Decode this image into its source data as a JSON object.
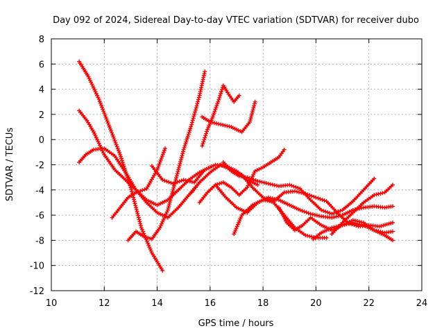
{
  "chart_data": {
    "type": "scatter",
    "title": "Day 092 of 2024, Sidereal Day-to-day VTEC variation (SDTVAR) for receiver dubo",
    "xlabel": "GPS time / hours",
    "ylabel": "SDTVAR / TECUs",
    "xlim": [
      10,
      24
    ],
    "ylim": [
      -12,
      8
    ],
    "xticks": [
      10,
      12,
      14,
      16,
      18,
      20,
      22,
      24
    ],
    "yticks": [
      -12,
      -10,
      -8,
      -6,
      -4,
      -2,
      0,
      2,
      4,
      6,
      8
    ],
    "grid": true,
    "marker": "+",
    "color": "#ff0000",
    "series": [
      {
        "name": "trace-1",
        "x": [
          11.05,
          11.4,
          11.8,
          12.2,
          12.6,
          13.0,
          13.4,
          13.8,
          14.2
        ],
        "y": [
          6.2,
          5.0,
          3.2,
          1.0,
          -1.2,
          -3.8,
          -7.0,
          -9.0,
          -10.4
        ]
      },
      {
        "name": "trace-2",
        "x": [
          11.05,
          11.2,
          11.35,
          11.6,
          12.0,
          12.4,
          12.8,
          13.2,
          13.6,
          14.0,
          14.4,
          14.8,
          15.2,
          15.6,
          16.0
        ],
        "y": [
          2.3,
          1.9,
          1.5,
          0.6,
          -1.2,
          -2.4,
          -3.2,
          -4.0,
          -4.8,
          -5.2,
          -4.8,
          -4.0,
          -3.2,
          -2.6,
          -2.2
        ]
      },
      {
        "name": "trace-3",
        "x": [
          11.05,
          11.3,
          11.6,
          12.0,
          12.4,
          12.8,
          13.2,
          13.6,
          14.0,
          14.4,
          14.8,
          15.2,
          15.6
        ],
        "y": [
          -1.8,
          -1.2,
          -0.8,
          -0.7,
          -1.3,
          -2.6,
          -4.0,
          -5.0,
          -5.8,
          -6.2,
          -5.4,
          -4.4,
          -3.4
        ]
      },
      {
        "name": "trace-4",
        "x": [
          12.3,
          12.6,
          12.9,
          13.2,
          13.6,
          14.0,
          14.3
        ],
        "y": [
          -6.2,
          -5.4,
          -4.6,
          -4.2,
          -3.9,
          -2.4,
          -0.7
        ]
      },
      {
        "name": "trace-5",
        "x": [
          12.9,
          13.2,
          13.5,
          13.8,
          14.1,
          14.4,
          14.7,
          15.0,
          15.3,
          15.6,
          15.8
        ],
        "y": [
          -8.0,
          -7.3,
          -7.7,
          -7.9,
          -7.0,
          -5.6,
          -3.2,
          -0.8,
          1.2,
          3.5,
          5.4
        ]
      },
      {
        "name": "trace-6",
        "x": [
          13.8,
          14.2,
          14.6,
          15.0,
          15.4,
          15.8,
          16.2,
          16.6,
          17.0,
          17.4,
          17.8
        ],
        "y": [
          -2.1,
          -3.2,
          -3.5,
          -3.2,
          -3.4,
          -2.4,
          -2.0,
          -2.1,
          -2.5,
          -3.2,
          -3.6
        ]
      },
      {
        "name": "trace-7",
        "x": [
          15.7,
          15.9,
          16.1,
          16.3,
          16.5,
          16.7,
          16.9,
          17.1
        ],
        "y": [
          -0.5,
          0.8,
          1.8,
          3.0,
          4.3,
          3.6,
          3.0,
          3.5
        ]
      },
      {
        "name": "trace-8",
        "x": [
          15.7,
          16.0,
          16.4,
          16.8,
          17.2,
          17.5,
          17.7
        ],
        "y": [
          1.8,
          1.4,
          1.2,
          1.0,
          0.6,
          1.4,
          3.0
        ]
      },
      {
        "name": "trace-9",
        "x": [
          15.6,
          15.9,
          16.2,
          16.5,
          16.8,
          17.1,
          17.4,
          17.7,
          18.0,
          18.3,
          18.6,
          18.8
        ],
        "y": [
          -5.0,
          -4.2,
          -3.6,
          -3.4,
          -3.8,
          -4.4,
          -3.8,
          -2.5,
          -2.2,
          -1.8,
          -1.4,
          -0.8
        ]
      },
      {
        "name": "trace-10",
        "x": [
          16.5,
          16.8,
          17.1,
          17.4,
          17.8,
          18.2,
          18.6,
          19.0,
          19.4,
          19.8,
          20.2,
          20.6,
          21.0,
          21.4,
          21.8,
          22.2
        ],
        "y": [
          -1.8,
          -2.5,
          -2.9,
          -3.0,
          -3.3,
          -3.5,
          -3.7,
          -3.6,
          -3.9,
          -4.8,
          -5.6,
          -5.9,
          -5.6,
          -4.9,
          -4.0,
          -3.1
        ]
      },
      {
        "name": "trace-11",
        "x": [
          16.2,
          16.6,
          17.0,
          17.4,
          17.8,
          18.2,
          18.6,
          19.0,
          19.4,
          19.8,
          20.2,
          20.6,
          21.0,
          21.4,
          21.8,
          22.2,
          22.6,
          22.9
        ],
        "y": [
          -3.6,
          -4.6,
          -5.4,
          -5.8,
          -5.0,
          -4.6,
          -4.8,
          -5.2,
          -5.6,
          -5.9,
          -6.1,
          -6.2,
          -6.0,
          -5.6,
          -5.4,
          -5.3,
          -5.4,
          -5.3
        ]
      },
      {
        "name": "trace-12",
        "x": [
          16.9,
          17.2,
          17.6,
          18.0,
          18.4,
          18.8,
          19.2,
          19.6,
          20.0,
          20.4,
          20.8,
          21.2,
          21.6,
          22.0,
          22.4,
          22.9
        ],
        "y": [
          -7.5,
          -6.0,
          -5.2,
          -4.8,
          -4.9,
          -4.2,
          -4.1,
          -4.3,
          -4.6,
          -4.9,
          -5.8,
          -6.6,
          -6.9,
          -6.8,
          -6.9,
          -6.6
        ]
      },
      {
        "name": "trace-13",
        "x": [
          15.3,
          15.6,
          16.0,
          16.4,
          16.8,
          17.2,
          17.6,
          18.0,
          18.4,
          18.8,
          19.2,
          19.6,
          20.0,
          20.4
        ],
        "y": [
          -4.2,
          -3.4,
          -2.6,
          -2.0,
          -2.4,
          -2.8,
          -3.8,
          -4.6,
          -5.0,
          -6.0,
          -7.0,
          -7.6,
          -7.8,
          -7.8
        ]
      },
      {
        "name": "trace-14",
        "x": [
          18.6,
          18.9,
          19.2,
          19.5,
          19.8,
          20.2,
          20.6,
          21.0,
          21.4,
          21.8,
          22.2,
          22.6,
          22.9
        ],
        "y": [
          -5.4,
          -6.6,
          -7.2,
          -6.8,
          -6.2,
          -6.8,
          -7.2,
          -6.8,
          -6.4,
          -6.6,
          -7.2,
          -7.4,
          -7.3
        ]
      },
      {
        "name": "trace-15",
        "x": [
          20.6,
          21.0,
          21.4,
          21.8,
          22.2,
          22.6,
          22.9
        ],
        "y": [
          -7.5,
          -6.6,
          -5.8,
          -5.0,
          -4.4,
          -4.2,
          -3.6
        ]
      },
      {
        "name": "trace-16",
        "x": [
          19.9,
          20.2,
          20.6,
          21.0,
          21.4,
          21.8,
          22.2,
          22.6,
          22.9
        ],
        "y": [
          -7.9,
          -7.4,
          -7.0,
          -6.8,
          -6.6,
          -6.8,
          -7.2,
          -7.6,
          -8.0
        ]
      }
    ]
  }
}
